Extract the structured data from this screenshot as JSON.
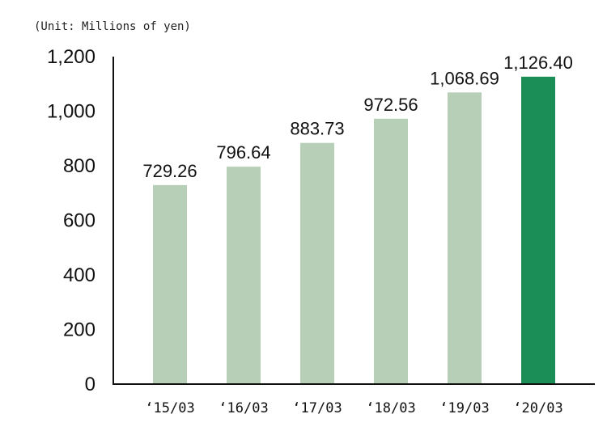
{
  "chart_data": {
    "type": "bar",
    "title": "",
    "unit_label": "(Unit: Millions of yen)",
    "xlabel": "",
    "ylabel": "",
    "ylim": [
      0,
      1200
    ],
    "yticks": [
      0,
      200,
      400,
      600,
      800,
      1000,
      1200
    ],
    "ytick_labels": [
      "0",
      "200",
      "400",
      "600",
      "800",
      "1,000",
      "1,200"
    ],
    "categories": [
      "‘15/03",
      "‘16/03",
      "‘17/03",
      "‘18/03",
      "‘19/03",
      "‘20/03"
    ],
    "values": [
      729.26,
      796.64,
      883.73,
      972.56,
      1068.69,
      1126.4
    ],
    "data_labels": [
      "729.26",
      "796.64",
      "883.73",
      "972.56",
      "1,068.69",
      "1,126.40"
    ],
    "colors": {
      "bar": "#b8cfb7",
      "highlight": "#1b8e57",
      "axis": "#111111"
    },
    "highlight_index": 5,
    "grid": false,
    "legend": "none"
  }
}
